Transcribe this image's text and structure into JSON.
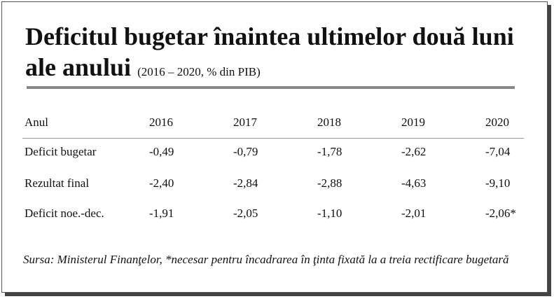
{
  "header": {
    "title": "Deficitul bugetar înaintea ultimelor două luni ale anului",
    "subtitle": "(2016 – 2020, % din PIB)"
  },
  "table": {
    "columns": [
      "Anul",
      "2016",
      "2017",
      "2018",
      "2019",
      "2020"
    ],
    "rows": [
      [
        "Deficit bugetar",
        "-0,49",
        "-0,79",
        "-1,78",
        "-2,62",
        "-7,04"
      ],
      [
        "Rezultat  final",
        "-2,40",
        "-2,84",
        "-2,88",
        "-4,63",
        "-9,10"
      ],
      [
        "Deficit noe.-dec.",
        "-1,91",
        "-2,05",
        "-1,10",
        "-2,01",
        "-2,06*"
      ]
    ]
  },
  "source": "Sursa: Ministerul Finanţelor, *necesar pentru încadrarea în ţinta fixată la a treia rectificare bugetară"
}
